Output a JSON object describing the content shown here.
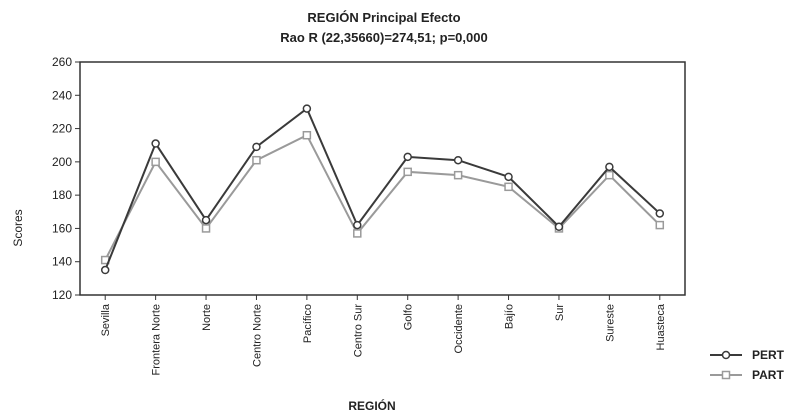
{
  "chart_data": {
    "type": "line",
    "title": "REGIÓN Principal Efecto",
    "subtitle": "Rao R (22,35660)=274,51; p=0,000",
    "xlabel": "REGIÓN",
    "ylabel": "Scores",
    "ylim": [
      120,
      260
    ],
    "yticks": [
      120,
      140,
      160,
      180,
      200,
      220,
      240,
      260
    ],
    "categories": [
      "Sevilla",
      "Frontera Norte",
      "Norte",
      "Centro Norte",
      "Pacífico",
      "Centro Sur",
      "Golfo",
      "Occidente",
      "Bajío",
      "Sur",
      "Sureste",
      "Huasteca"
    ],
    "series": [
      {
        "name": "PERT",
        "color": "#3a3a3a",
        "marker": "circle",
        "values": [
          135,
          211,
          165,
          209,
          232,
          162,
          203,
          201,
          191,
          161,
          197,
          169
        ]
      },
      {
        "name": "PART",
        "color": "#9a9a9a",
        "marker": "square",
        "values": [
          141,
          200,
          160,
          201,
          216,
          157,
          194,
          192,
          185,
          160,
          192,
          162
        ]
      }
    ],
    "grid": false,
    "legend": "bottom-right"
  }
}
